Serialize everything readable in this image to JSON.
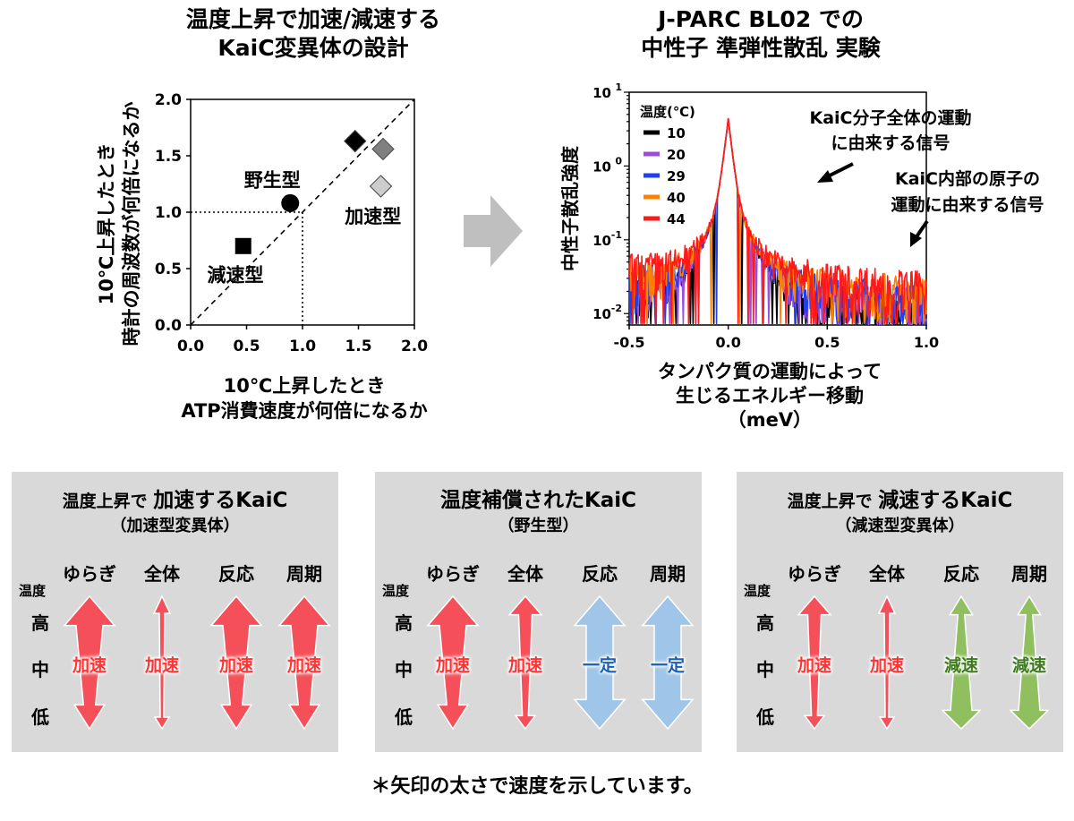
{
  "left_title": {
    "line1": "温度上昇で加速/減速する",
    "line2": "KaiC変異体の設計"
  },
  "right_title": {
    "line1": "J-PARC BL02 での",
    "line2": "中性子 準弾性散乱 実験"
  },
  "arrow_between": "right-arrow-icon",
  "chart_data": [
    {
      "type": "scatter",
      "xlabel": [
        "10℃上昇したとき",
        "ATP消費速度が何倍になるか"
      ],
      "ylabel": [
        "10℃上昇したとき",
        "時計の周波数が何倍になるか"
      ],
      "xlim": [
        0,
        2
      ],
      "ylim": [
        0,
        2
      ],
      "xticks": [
        "0.0",
        "0.5",
        "1.0",
        "1.5",
        "2.0"
      ],
      "yticks": [
        "0.0",
        "0.5",
        "1.0",
        "1.5",
        "2.0"
      ],
      "points": [
        {
          "x": 0.47,
          "y": 0.7,
          "marker": "square",
          "color": "#000000"
        },
        {
          "x": 0.89,
          "y": 1.08,
          "marker": "circle",
          "color": "#000000"
        },
        {
          "x": 1.47,
          "y": 1.63,
          "marker": "diamond",
          "color": "#000000"
        },
        {
          "x": 1.72,
          "y": 1.56,
          "marker": "diamond",
          "color": "#808080"
        },
        {
          "x": 1.7,
          "y": 1.23,
          "marker": "diamond",
          "color": "#cccccc"
        }
      ],
      "annotations": [
        {
          "text": "野生型",
          "x": 0.73,
          "y": 1.29
        },
        {
          "text": "加速型",
          "x": 1.63,
          "y": 0.97
        },
        {
          "text": "減速型",
          "x": 0.4,
          "y": 0.45
        }
      ],
      "reference_lines": [
        "y=x (dashed)",
        "x=1.0 (dotted)",
        "y=1.0 (dotted)"
      ]
    },
    {
      "type": "line",
      "ylabel": "中性子散乱強度",
      "xlabel": [
        "タンパク質の運動によって",
        "生じるエネルギー移動",
        "（meV）"
      ],
      "xlim": [
        -0.5,
        1.0
      ],
      "xticks": [
        "-0.5",
        "0.0",
        "0.5",
        "1.0"
      ],
      "yscale": "log",
      "ylim": [
        0.007,
        10
      ],
      "yticks": [
        {
          "base": "10",
          "exp": "1",
          "value": 10
        },
        {
          "base": "10",
          "exp": "0",
          "value": 1
        },
        {
          "base": "10",
          "exp": "-1",
          "value": 0.1
        },
        {
          "base": "10",
          "exp": "-2",
          "value": 0.01
        }
      ],
      "legend_title": "温度(℃)",
      "legend_placement": "top-left",
      "series": [
        {
          "name": "10",
          "color": "#000000"
        },
        {
          "name": "20",
          "color": "#9a4de0"
        },
        {
          "name": "29",
          "color": "#1f3ff0"
        },
        {
          "name": "40",
          "color": "#ff8000"
        },
        {
          "name": "44",
          "color": "#ff1a1a"
        }
      ],
      "peak": {
        "x": 0.0,
        "y": 4.0
      },
      "annotations": [
        {
          "lines": [
            "KaiC分子全体の運動",
            "に由来する信号"
          ]
        },
        {
          "lines": [
            "KaiC内部の原子の",
            "運動に由来する信号"
          ]
        }
      ]
    }
  ],
  "columns": [
    "ゆらぎ",
    "全体",
    "反応",
    "周期"
  ],
  "temp_labels": {
    "header": "温度",
    "high": "高",
    "mid": "中",
    "low": "低"
  },
  "colors": {
    "accelerate": "#f5505a",
    "constant": "#9fc5e8",
    "decelerate": "#8fbf5f",
    "accel_text": "#ff3333",
    "const_text": "#1a5fb4",
    "decel_text": "#3f7a1f"
  },
  "panels": [
    {
      "title_pre": "温度上昇で",
      "title_main": "加速するKaiC",
      "subtitle": "（加速型変異体）",
      "arrows": [
        {
          "kind": "accelerate",
          "width": "thick",
          "label": "加速"
        },
        {
          "kind": "accelerate",
          "width": "thin",
          "label": "加速"
        },
        {
          "kind": "accelerate",
          "width": "thick",
          "label": "加速"
        },
        {
          "kind": "accelerate",
          "width": "thick",
          "label": "加速"
        }
      ]
    },
    {
      "title_pre": "",
      "title_main": "温度補償されたKaiC",
      "subtitle": "（野生型）",
      "arrows": [
        {
          "kind": "accelerate",
          "width": "thick",
          "label": "加速"
        },
        {
          "kind": "accelerate",
          "width": "medium",
          "label": "加速"
        },
        {
          "kind": "constant",
          "width": "thick",
          "label": "一定"
        },
        {
          "kind": "constant",
          "width": "thick",
          "label": "一定"
        }
      ]
    },
    {
      "title_pre": "温度上昇で",
      "title_main": "減速するKaiC",
      "subtitle": "（減速型変異体）",
      "arrows": [
        {
          "kind": "accelerate",
          "width": "medium",
          "label": "加速"
        },
        {
          "kind": "accelerate",
          "width": "thin",
          "label": "加速"
        },
        {
          "kind": "decelerate",
          "width": "medium",
          "label": "減速"
        },
        {
          "kind": "decelerate",
          "width": "medium",
          "label": "減速"
        }
      ]
    }
  ],
  "footnote": "＊矢印の太さで速度を示しています。"
}
